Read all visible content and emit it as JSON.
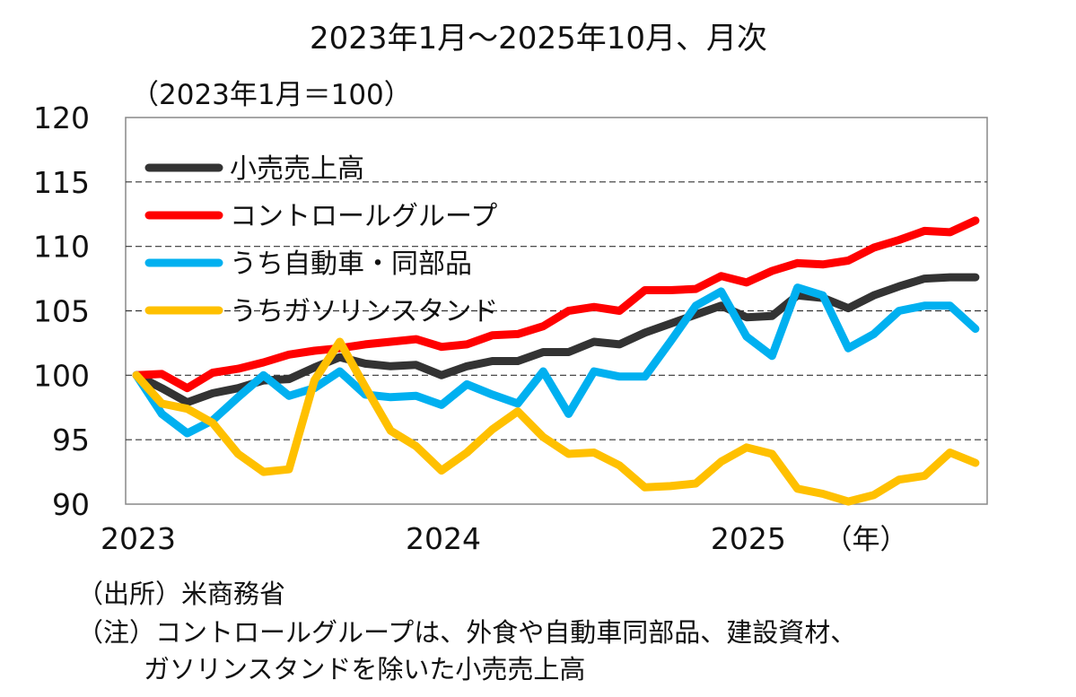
{
  "chart_data": {
    "type": "line",
    "title": "2023年1月～2025年10月、月次",
    "ylabel": "（2023年1月＝100）",
    "xlabel": "（年）",
    "ylim": [
      90,
      120
    ],
    "yticks": [
      "120",
      "115",
      "110",
      "105",
      "100",
      "95",
      "90"
    ],
    "xticks": [
      "2023",
      "2024",
      "2025"
    ],
    "grid": "horizontal dashed",
    "legend_placement": "top-left",
    "x": [
      "2023-01",
      "2023-02",
      "2023-03",
      "2023-04",
      "2023-05",
      "2023-06",
      "2023-07",
      "2023-08",
      "2023-09",
      "2023-10",
      "2023-11",
      "2023-12",
      "2024-01",
      "2024-02",
      "2024-03",
      "2024-04",
      "2024-05",
      "2024-06",
      "2024-07",
      "2024-08",
      "2024-09",
      "2024-10",
      "2024-11",
      "2024-12",
      "2025-01",
      "2025-02",
      "2025-03",
      "2025-04",
      "2025-05",
      "2025-06",
      "2025-07",
      "2025-08",
      "2025-09",
      "2025-10"
    ],
    "series": [
      {
        "name": "小売売上高",
        "color": "#333333",
        "values": [
          100.0,
          99.0,
          97.9,
          98.6,
          99.0,
          99.6,
          99.7,
          100.6,
          101.4,
          100.9,
          100.7,
          100.8,
          100.0,
          100.7,
          101.1,
          101.1,
          101.8,
          101.8,
          102.6,
          102.4,
          103.3,
          104.0,
          104.7,
          105.4,
          104.5,
          104.6,
          106.2,
          106.0,
          105.2,
          106.2,
          106.9,
          107.5,
          107.6,
          107.6
        ]
      },
      {
        "name": "コントロールグループ",
        "color": "#ff0000",
        "values": [
          100.0,
          100.1,
          99.0,
          100.2,
          100.5,
          101.0,
          101.6,
          101.9,
          102.1,
          102.4,
          102.6,
          102.8,
          102.2,
          102.4,
          103.1,
          103.2,
          103.8,
          105.0,
          105.3,
          105.0,
          106.6,
          106.6,
          106.7,
          107.7,
          107.2,
          108.1,
          108.7,
          108.6,
          108.9,
          109.9,
          110.5,
          111.2,
          111.1,
          112.0
        ]
      },
      {
        "name": "うち自動車・同部品",
        "color": "#00b0f0",
        "values": [
          100.0,
          97.0,
          95.5,
          96.5,
          98.3,
          100.0,
          98.4,
          99.0,
          100.3,
          98.5,
          98.3,
          98.4,
          97.7,
          99.3,
          98.5,
          97.8,
          100.3,
          97.0,
          100.3,
          99.9,
          99.9,
          102.6,
          105.4,
          106.5,
          103.0,
          101.5,
          106.8,
          106.2,
          102.1,
          103.2,
          105.0,
          105.4,
          105.4,
          103.6
        ]
      },
      {
        "name": "うちガソリンスタンド",
        "color": "#ffc000",
        "values": [
          100.0,
          97.8,
          97.4,
          96.3,
          93.9,
          92.5,
          92.7,
          99.6,
          102.6,
          99.1,
          95.7,
          94.5,
          92.6,
          94.0,
          95.8,
          97.2,
          95.2,
          93.9,
          94.0,
          93.0,
          91.3,
          91.4,
          91.6,
          93.3,
          94.4,
          93.9,
          91.2,
          90.8,
          90.2,
          90.7,
          91.9,
          92.2,
          94.0,
          93.2
        ]
      }
    ]
  },
  "notes": {
    "source": "（出所）米商務省",
    "note_line1": "（注）コントロールグループは、外食や自動車同部品、建設資材、",
    "note_line2": "ガソリンスタンドを除いた小売売上高"
  }
}
